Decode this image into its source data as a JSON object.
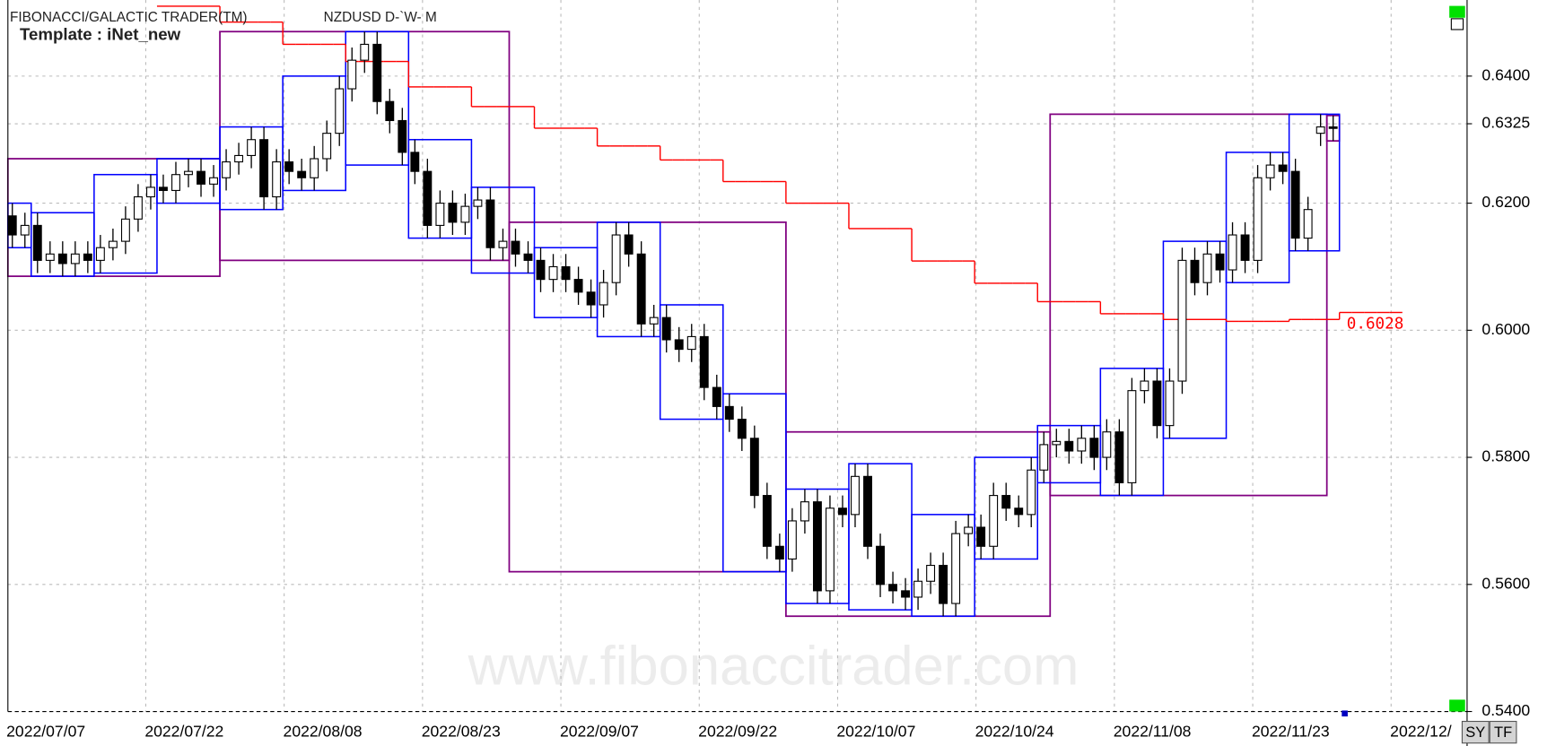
{
  "chart_data": {
    "type": "candlestick",
    "title": "FIBONACCI/GALACTIC TRADER(TM)",
    "subtitle": "NZDUSD D-`W- M",
    "template": "Template : iNet_new",
    "watermark": "www.fibonaccitrader.com",
    "buttons": [
      "SY",
      "TF"
    ],
    "categories": [
      "2022/07/07",
      null,
      null,
      null,
      null,
      null,
      null,
      null,
      null,
      null,
      null,
      "2022/07/22",
      null,
      null,
      null,
      null,
      null,
      null,
      null,
      null,
      null,
      null,
      "2022/08/08",
      null,
      null,
      null,
      null,
      null,
      null,
      null,
      null,
      null,
      null,
      "2022/08/23",
      null,
      null,
      null,
      null,
      null,
      null,
      null,
      null,
      null,
      null,
      "2022/09/07",
      null,
      null,
      null,
      null,
      null,
      null,
      null,
      null,
      null,
      null,
      "2022/09/22",
      null,
      null,
      null,
      null,
      null,
      null,
      null,
      null,
      null,
      null,
      "2022/10/07",
      null,
      null,
      null,
      null,
      null,
      null,
      null,
      null,
      null,
      null,
      "2022/10/24",
      null,
      null,
      null,
      null,
      null,
      null,
      null,
      null,
      null,
      null,
      "2022/11/08",
      null,
      null,
      null,
      null,
      null,
      null,
      null,
      null,
      null,
      null,
      "2022/11/23",
      null,
      null,
      null,
      null,
      null,
      null,
      null,
      null,
      null,
      null,
      "2022/12/"
    ],
    "open": [
      0.618,
      0.615,
      0.6165,
      0.611,
      0.612,
      0.6105,
      0.612,
      0.611,
      0.613,
      0.614,
      0.6175,
      0.621,
      0.6225,
      0.622,
      0.6245,
      0.625,
      0.623,
      0.624,
      0.6265,
      0.6275,
      0.63,
      0.621,
      0.6265,
      0.625,
      0.624,
      0.627,
      0.631,
      0.638,
      0.6425,
      0.645,
      0.636,
      0.633,
      0.628,
      0.625,
      0.6165,
      0.62,
      0.617,
      0.6195,
      0.6205,
      0.613,
      0.614,
      0.612,
      0.611,
      0.608,
      0.61,
      0.608,
      0.606,
      0.604,
      0.6075,
      0.615,
      0.612,
      0.601,
      0.602,
      0.5985,
      0.597,
      0.599,
      0.591,
      0.588,
      0.586,
      0.583,
      0.574,
      0.566,
      0.564,
      0.57,
      0.573,
      0.559,
      0.572,
      0.571,
      0.577,
      0.566,
      0.56,
      0.559,
      0.558,
      0.5605,
      0.563,
      0.557,
      0.568,
      0.569,
      0.566,
      0.574,
      0.572,
      0.571,
      0.578,
      0.582,
      0.5825,
      0.581,
      0.583,
      0.58,
      0.584,
      0.576,
      0.5905,
      0.592,
      0.585,
      0.592,
      0.611,
      0.6075,
      0.612,
      0.6095,
      0.615,
      0.611,
      0.624,
      0.626,
      0.625,
      0.6145,
      0.631,
      0.632,
      null,
      null,
      null,
      null,
      null
    ],
    "high": [
      0.62,
      0.6185,
      0.6185,
      0.614,
      0.614,
      0.614,
      0.614,
      0.615,
      0.616,
      0.6195,
      0.623,
      0.6245,
      0.6245,
      0.6265,
      0.627,
      0.627,
      0.626,
      0.6285,
      0.6295,
      0.632,
      0.632,
      0.6285,
      0.6285,
      0.627,
      0.629,
      0.633,
      0.64,
      0.6445,
      0.647,
      0.647,
      0.638,
      0.635,
      0.63,
      0.627,
      0.622,
      0.622,
      0.6215,
      0.6225,
      0.6225,
      0.616,
      0.616,
      0.614,
      0.613,
      0.612,
      0.612,
      0.61,
      0.608,
      0.6095,
      0.617,
      0.617,
      0.614,
      0.604,
      0.604,
      0.6005,
      0.601,
      0.601,
      0.593,
      0.59,
      0.588,
      0.585,
      0.576,
      0.568,
      0.572,
      0.575,
      0.575,
      0.574,
      0.574,
      0.579,
      0.579,
      0.568,
      0.562,
      0.561,
      0.5625,
      0.565,
      0.565,
      0.57,
      0.571,
      0.571,
      0.576,
      0.576,
      0.574,
      0.58,
      0.584,
      0.5845,
      0.5845,
      0.585,
      0.585,
      0.586,
      0.586,
      0.5925,
      0.594,
      0.594,
      0.594,
      0.613,
      0.613,
      0.614,
      0.614,
      0.617,
      0.617,
      0.626,
      0.628,
      0.628,
      0.627,
      0.621,
      0.634,
      0.6338,
      null,
      null,
      null,
      null,
      null
    ],
    "low": [
      0.613,
      0.613,
      0.609,
      0.609,
      0.6085,
      0.6085,
      0.609,
      0.609,
      0.611,
      0.612,
      0.6155,
      0.619,
      0.62,
      0.62,
      0.6225,
      0.621,
      0.621,
      0.622,
      0.6245,
      0.6255,
      0.619,
      0.619,
      0.623,
      0.622,
      0.622,
      0.625,
      0.629,
      0.636,
      0.6405,
      0.634,
      0.631,
      0.626,
      0.623,
      0.6145,
      0.6145,
      0.615,
      0.615,
      0.6175,
      0.611,
      0.611,
      0.61,
      0.609,
      0.606,
      0.606,
      0.606,
      0.604,
      0.602,
      0.602,
      0.6055,
      0.61,
      0.599,
      0.599,
      0.5965,
      0.595,
      0.595,
      0.589,
      0.586,
      0.584,
      0.581,
      0.572,
      0.564,
      0.562,
      0.562,
      0.568,
      0.557,
      0.557,
      0.569,
      0.569,
      0.564,
      0.558,
      0.557,
      0.556,
      0.556,
      0.5585,
      0.555,
      0.555,
      0.566,
      0.564,
      0.564,
      0.57,
      0.569,
      0.569,
      0.576,
      0.58,
      0.579,
      0.579,
      0.578,
      0.578,
      0.574,
      0.574,
      0.5885,
      0.583,
      0.583,
      0.59,
      0.6055,
      0.6055,
      0.6075,
      0.6075,
      0.609,
      0.609,
      0.622,
      0.623,
      0.6125,
      0.6125,
      0.629,
      0.6298,
      null,
      null,
      null,
      null,
      null
    ],
    "close": [
      0.615,
      0.6165,
      0.611,
      0.612,
      0.6105,
      0.612,
      0.611,
      0.613,
      0.614,
      0.6175,
      0.621,
      0.6225,
      0.622,
      0.6245,
      0.625,
      0.623,
      0.624,
      0.6265,
      0.6275,
      0.63,
      0.621,
      0.6265,
      0.625,
      0.624,
      0.627,
      0.631,
      0.638,
      0.6425,
      0.645,
      0.636,
      0.633,
      0.628,
      0.625,
      0.6165,
      0.62,
      0.617,
      0.6195,
      0.6205,
      0.613,
      0.614,
      0.612,
      0.611,
      0.608,
      0.61,
      0.608,
      0.606,
      0.604,
      0.6075,
      0.615,
      0.612,
      0.601,
      0.602,
      0.5985,
      0.597,
      0.599,
      0.591,
      0.588,
      0.586,
      0.583,
      0.574,
      0.566,
      0.564,
      0.57,
      0.573,
      0.559,
      0.572,
      0.571,
      0.577,
      0.566,
      0.56,
      0.559,
      0.558,
      0.5605,
      0.563,
      0.557,
      0.568,
      0.569,
      0.566,
      0.574,
      0.572,
      0.571,
      0.578,
      0.582,
      0.5825,
      0.581,
      0.583,
      0.58,
      0.584,
      0.576,
      0.5905,
      0.592,
      0.585,
      0.592,
      0.611,
      0.6075,
      0.612,
      0.6095,
      0.615,
      0.611,
      0.624,
      0.626,
      0.625,
      0.6145,
      0.619,
      0.632,
      0.6318,
      null,
      null,
      null,
      null,
      null
    ],
    "step_line": {
      "color": "#ff0000",
      "values": [
        null,
        null,
        null,
        null,
        null,
        null,
        null,
        null,
        null,
        null,
        null,
        null,
        0.651,
        0.651,
        0.651,
        0.651,
        0.651,
        0.6485,
        0.6485,
        0.6485,
        0.6485,
        0.6485,
        0.645,
        0.645,
        0.645,
        0.645,
        0.645,
        0.6423,
        0.6423,
        0.6423,
        0.6423,
        0.6423,
        0.6383,
        0.6383,
        0.6383,
        0.6383,
        0.6383,
        0.6352,
        0.6352,
        0.6352,
        0.6352,
        0.6352,
        0.6318,
        0.6318,
        0.6318,
        0.6318,
        0.6318,
        0.629,
        0.629,
        0.629,
        0.629,
        0.629,
        0.6268,
        0.6268,
        0.6268,
        0.6268,
        0.6268,
        0.6234,
        0.6234,
        0.6234,
        0.6234,
        0.6234,
        0.62,
        0.62,
        0.62,
        0.62,
        0.62,
        0.616,
        0.616,
        0.616,
        0.616,
        0.616,
        0.6109,
        0.6109,
        0.6109,
        0.6109,
        0.6109,
        0.6074,
        0.6074,
        0.6074,
        0.6074,
        0.6074,
        0.6045,
        0.6045,
        0.6045,
        0.6045,
        0.6045,
        0.6026,
        0.6026,
        0.6026,
        0.6026,
        0.6026,
        0.6017,
        0.6017,
        0.6017,
        0.6017,
        0.6017,
        0.6014,
        0.6014,
        0.6014,
        0.6014,
        0.6014,
        0.6017,
        0.6017,
        0.6017,
        0.6017,
        0.6028,
        0.6028,
        0.6028,
        0.6028,
        0.6028
      ]
    },
    "weekly_boxes": {
      "color": "#0000ff",
      "ranges": [
        [
          0,
          1
        ],
        [
          2,
          6
        ],
        [
          7,
          11
        ],
        [
          12,
          16
        ],
        [
          17,
          21
        ],
        [
          22,
          26
        ],
        [
          27,
          31
        ],
        [
          32,
          36
        ],
        [
          37,
          41
        ],
        [
          42,
          46
        ],
        [
          47,
          51
        ],
        [
          52,
          56
        ],
        [
          57,
          61
        ],
        [
          62,
          66
        ],
        [
          67,
          71
        ],
        [
          72,
          76
        ],
        [
          77,
          81
        ],
        [
          82,
          86
        ],
        [
          87,
          91
        ],
        [
          92,
          96
        ],
        [
          97,
          101
        ],
        [
          102,
          105
        ]
      ]
    },
    "monthly_boxes": {
      "color": "#800080",
      "ranges": [
        [
          0,
          16
        ],
        [
          17,
          39
        ],
        [
          40,
          61
        ],
        [
          62,
          82
        ],
        [
          83,
          104
        ],
        [
          105,
          105
        ]
      ]
    },
    "ylim": [
      0.54,
      0.6512
    ],
    "yticks": [
      {
        "value": 0.64,
        "label": "0.6400"
      },
      0.6325,
      {
        "value": 0.62,
        "label": "0.6200"
      },
      {
        "value": 0.6,
        "label": "0.6000"
      },
      {
        "value": 0.58,
        "label": "0.5800"
      },
      {
        "value": 0.56,
        "label": "0.5600"
      },
      {
        "value": 0.54,
        "label": "0.5400"
      }
    ],
    "grid": true
  }
}
